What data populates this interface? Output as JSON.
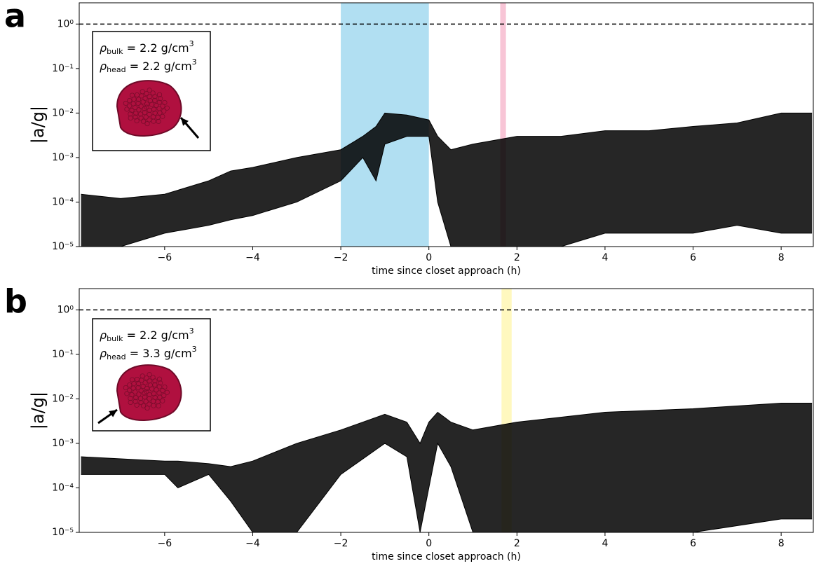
{
  "chart_data": [
    {
      "type": "band",
      "panel_label": "a",
      "xlabel": "time since closet approach (h)",
      "ylabel": "|a/g|",
      "log_y": true,
      "xlim": [
        -7.94,
        8.73
      ],
      "ylim": [
        1e-05,
        3
      ],
      "xticks": [
        {
          "value": -6,
          "label": "−6"
        },
        {
          "value": -4,
          "label": "−4"
        },
        {
          "value": -2,
          "label": "−2"
        },
        0,
        2,
        4,
        6,
        8
      ],
      "yticks": [
        {
          "value": 1e-05,
          "label": "10⁻⁵"
        },
        {
          "value": 0.0001,
          "label": "10⁻⁴"
        },
        {
          "value": 0.001,
          "label": "10⁻³"
        },
        {
          "value": 0.01,
          "label": "10⁻²"
        },
        {
          "value": 0.1,
          "label": "10⁻¹"
        },
        {
          "value": 1,
          "label": "10⁰"
        }
      ],
      "hline": 1,
      "spans": [
        {
          "from": -2,
          "to": 0,
          "color": "#87ceeb"
        },
        {
          "from": 1.62,
          "to": 1.75,
          "color": "#f4a6c0"
        }
      ],
      "x": [
        -7.9,
        -7,
        -6,
        -5,
        -4.5,
        -4,
        -3,
        -2,
        -1.5,
        -1.2,
        -1,
        -0.5,
        0,
        0.2,
        0.5,
        1,
        2,
        3,
        4,
        5,
        6,
        7,
        8,
        8.7
      ],
      "series": [
        {
          "name": "upper",
          "color": "#000000",
          "values": [
            0.00015,
            0.00012,
            0.00015,
            0.0003,
            0.0005,
            0.0006,
            0.001,
            0.0015,
            0.003,
            0.005,
            0.01,
            0.009,
            0.007,
            0.003,
            0.0015,
            0.002,
            0.003,
            0.003,
            0.004,
            0.004,
            0.005,
            0.006,
            0.01,
            0.01
          ]
        },
        {
          "name": "lower",
          "color": "#000000",
          "values": [
            1e-05,
            1e-05,
            2e-05,
            3e-05,
            4e-05,
            5e-05,
            0.0001,
            0.0003,
            0.001,
            0.0003,
            0.002,
            0.003,
            0.003,
            0.0001,
            1e-05,
            1e-05,
            1e-05,
            1e-05,
            2e-05,
            2e-05,
            2e-05,
            3e-05,
            2e-05,
            2e-05
          ]
        }
      ],
      "inset": [
        {
          "symbol": "ρ",
          "sub": "bulk",
          "text": " = 2.2 g/cm",
          "sup": "3"
        },
        {
          "symbol": "ρ",
          "sub": "head",
          "text": " = 2.2 g/cm",
          "sup": "3"
        }
      ]
    },
    {
      "type": "band",
      "panel_label": "b",
      "xlabel": "time since closet approach (h)",
      "ylabel": "|a/g|",
      "log_y": true,
      "xlim": [
        -7.94,
        8.73
      ],
      "ylim": [
        1e-05,
        3
      ],
      "xticks": [
        {
          "value": -6,
          "label": "−6"
        },
        {
          "value": -4,
          "label": "−4"
        },
        {
          "value": -2,
          "label": "−2"
        },
        0,
        2,
        4,
        6,
        8
      ],
      "yticks": [
        {
          "value": 1e-05,
          "label": "10⁻⁵"
        },
        {
          "value": 0.0001,
          "label": "10⁻⁴"
        },
        {
          "value": 0.001,
          "label": "10⁻³"
        },
        {
          "value": 0.01,
          "label": "10⁻²"
        },
        {
          "value": 0.1,
          "label": "10⁻¹"
        },
        {
          "value": 1,
          "label": "10⁰"
        }
      ],
      "hline": 1,
      "spans": [
        {
          "from": 1.65,
          "to": 1.88,
          "color": "#fff59d"
        }
      ],
      "x": [
        -7.9,
        -6,
        -5.7,
        -5,
        -4.5,
        -4,
        -3,
        -2,
        -1,
        -0.5,
        -0.2,
        0,
        0.2,
        0.5,
        1,
        2,
        4,
        6,
        8,
        8.7
      ],
      "series": [
        {
          "name": "upper",
          "color": "#000000",
          "values": [
            0.0005,
            0.0004,
            0.0004,
            0.00035,
            0.0003,
            0.0004,
            0.001,
            0.002,
            0.0045,
            0.003,
            0.001,
            0.003,
            0.005,
            0.003,
            0.002,
            0.003,
            0.005,
            0.006,
            0.008,
            0.008
          ]
        },
        {
          "name": "lower",
          "color": "#000000",
          "values": [
            0.0002,
            0.0002,
            0.0001,
            0.0002,
            5e-05,
            1e-05,
            1e-05,
            0.0002,
            0.001,
            0.0005,
            1e-05,
            0.0001,
            0.001,
            0.0003,
            1e-05,
            1e-05,
            1e-05,
            1e-05,
            2e-05,
            2e-05
          ]
        }
      ],
      "inset": [
        {
          "symbol": "ρ",
          "sub": "bulk",
          "text": " = 2.2 g/cm",
          "sup": "3"
        },
        {
          "symbol": "ρ",
          "sub": "head",
          "text": " = 3.3 g/cm",
          "sup": "3"
        }
      ]
    }
  ]
}
